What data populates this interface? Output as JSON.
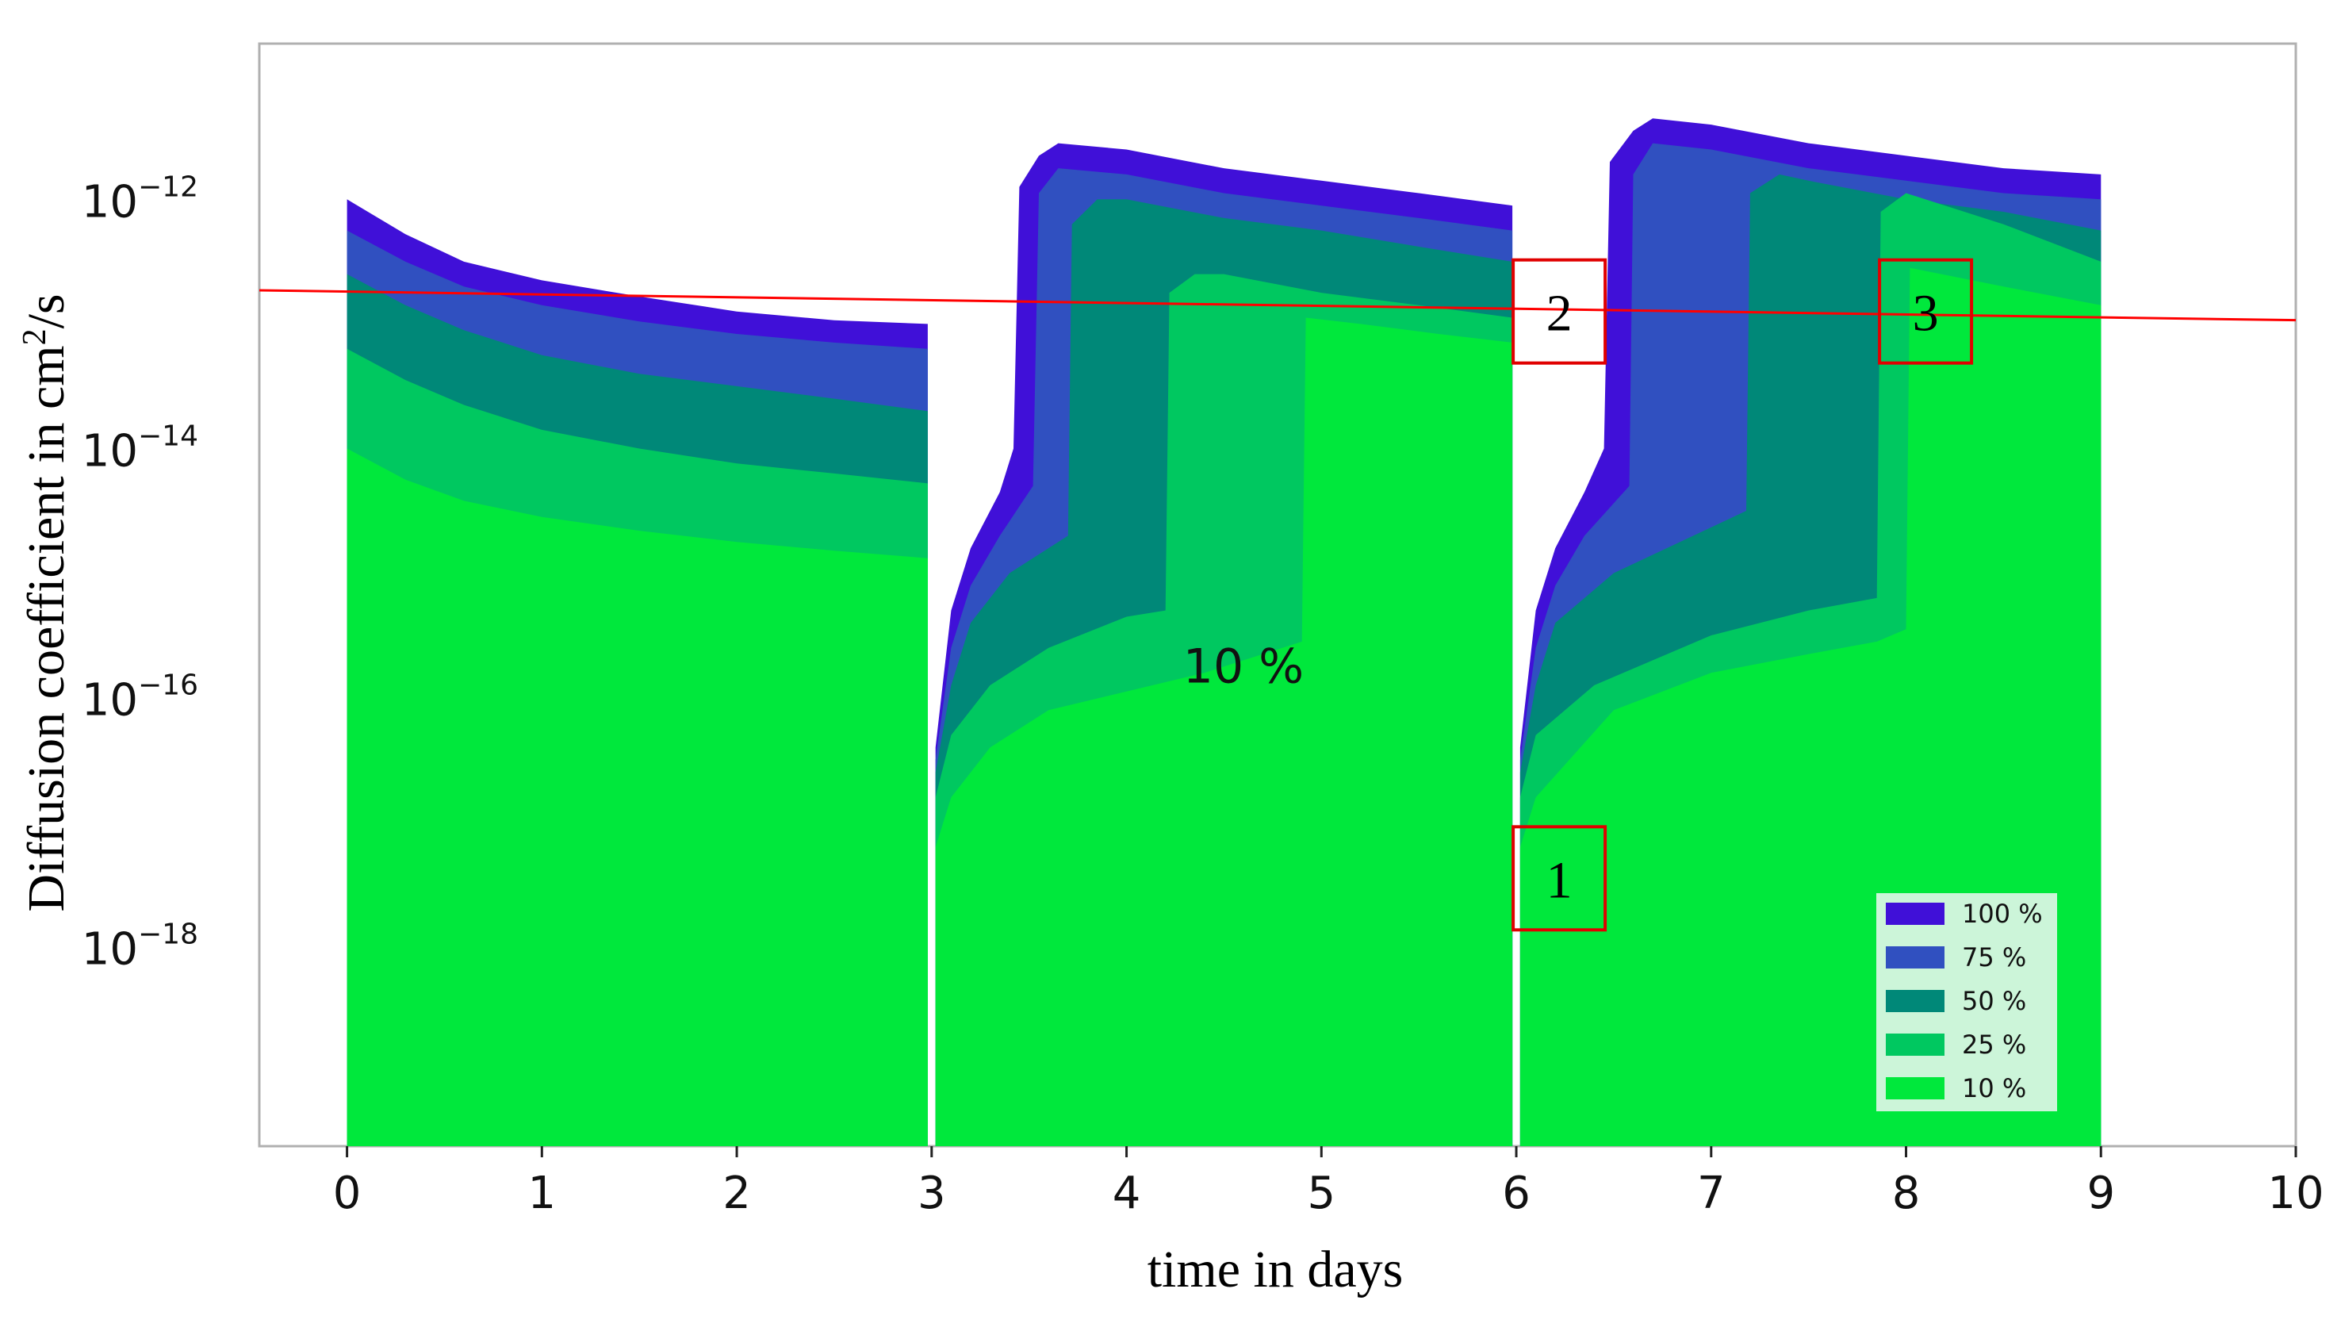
{
  "chart_data": {
    "type": "area",
    "title": "",
    "xlabel": "time in days",
    "ylabel": "Diffusion coefficient in cm²/s",
    "ylabel_text": "Diffusion coefficient in cm",
    "ylabel_unit_sup": "2",
    "ylabel_unit_tail": "/s",
    "xlim": [
      -0.45,
      10
    ],
    "ylim_log10": [
      -19.6,
      -10.75
    ],
    "y_scale": "log",
    "x_ticks": [
      0,
      1,
      2,
      3,
      4,
      5,
      6,
      7,
      8,
      9,
      10
    ],
    "y_ticks": [
      {
        "base": "10",
        "exp": "−12",
        "log10": -12
      },
      {
        "base": "10",
        "exp": "−14",
        "log10": -14
      },
      {
        "base": "10",
        "exp": "−16",
        "log10": -16
      },
      {
        "base": "10",
        "exp": "−18",
        "log10": -18
      }
    ],
    "legend": {
      "position": "lower-right",
      "entries": [
        {
          "label": "100 %",
          "color": "#4010d8"
        },
        {
          "label": "75 %",
          "color": "#3050c0"
        },
        {
          "label": "50 %",
          "color": "#008878"
        },
        {
          "label": "25 %",
          "color": "#00c860"
        },
        {
          "label": "10 %",
          "color": "#00e83c"
        }
      ]
    },
    "series": [
      {
        "name": "100 %",
        "color": "#4010d8",
        "points": [
          [
            0,
            -12.0
          ],
          [
            0.3,
            -12.28
          ],
          [
            0.6,
            -12.5
          ],
          [
            1.0,
            -12.65
          ],
          [
            1.5,
            -12.78
          ],
          [
            2.0,
            -12.9
          ],
          [
            2.5,
            -12.97
          ],
          [
            2.98,
            -13.0
          ],
          [
            3.02,
            -16.4
          ],
          [
            3.1,
            -15.3
          ],
          [
            3.2,
            -14.8
          ],
          [
            3.35,
            -14.35
          ],
          [
            3.42,
            -14.0
          ],
          [
            3.45,
            -11.9
          ],
          [
            3.55,
            -11.65
          ],
          [
            3.65,
            -11.55
          ],
          [
            4.0,
            -11.6
          ],
          [
            4.5,
            -11.75
          ],
          [
            5.0,
            -11.85
          ],
          [
            5.5,
            -11.95
          ],
          [
            5.98,
            -12.05
          ],
          [
            6.02,
            -16.4
          ],
          [
            6.1,
            -15.3
          ],
          [
            6.2,
            -14.8
          ],
          [
            6.35,
            -14.35
          ],
          [
            6.45,
            -14.0
          ],
          [
            6.48,
            -11.7
          ],
          [
            6.6,
            -11.45
          ],
          [
            6.7,
            -11.35
          ],
          [
            7.0,
            -11.4
          ],
          [
            7.5,
            -11.55
          ],
          [
            8.0,
            -11.65
          ],
          [
            8.5,
            -11.75
          ],
          [
            9.0,
            -11.8
          ]
        ]
      },
      {
        "name": "75 %",
        "color": "#3050c0",
        "points": [
          [
            0,
            -12.25
          ],
          [
            0.3,
            -12.5
          ],
          [
            0.6,
            -12.7
          ],
          [
            1.0,
            -12.85
          ],
          [
            1.5,
            -12.98
          ],
          [
            2.0,
            -13.08
          ],
          [
            2.5,
            -13.15
          ],
          [
            2.98,
            -13.2
          ],
          [
            3.02,
            -16.5
          ],
          [
            3.1,
            -15.6
          ],
          [
            3.2,
            -15.1
          ],
          [
            3.35,
            -14.7
          ],
          [
            3.52,
            -14.3
          ],
          [
            3.55,
            -11.95
          ],
          [
            3.65,
            -11.75
          ],
          [
            4.0,
            -11.8
          ],
          [
            4.5,
            -11.95
          ],
          [
            5.0,
            -12.05
          ],
          [
            5.5,
            -12.15
          ],
          [
            5.98,
            -12.25
          ],
          [
            6.02,
            -16.5
          ],
          [
            6.1,
            -15.6
          ],
          [
            6.2,
            -15.1
          ],
          [
            6.35,
            -14.7
          ],
          [
            6.58,
            -14.3
          ],
          [
            6.6,
            -11.8
          ],
          [
            6.7,
            -11.55
          ],
          [
            7.0,
            -11.6
          ],
          [
            7.5,
            -11.75
          ],
          [
            8.0,
            -11.85
          ],
          [
            8.5,
            -11.95
          ],
          [
            9.0,
            -12.0
          ]
        ]
      },
      {
        "name": "50 %",
        "color": "#008878",
        "points": [
          [
            0,
            -12.6
          ],
          [
            0.3,
            -12.85
          ],
          [
            0.6,
            -13.05
          ],
          [
            1.0,
            -13.25
          ],
          [
            1.5,
            -13.4
          ],
          [
            2.0,
            -13.5
          ],
          [
            2.5,
            -13.6
          ],
          [
            2.98,
            -13.7
          ],
          [
            3.02,
            -16.6
          ],
          [
            3.1,
            -15.9
          ],
          [
            3.2,
            -15.4
          ],
          [
            3.4,
            -15.0
          ],
          [
            3.7,
            -14.7
          ],
          [
            3.72,
            -12.2
          ],
          [
            3.85,
            -12.0
          ],
          [
            4.0,
            -12.0
          ],
          [
            4.5,
            -12.15
          ],
          [
            5.0,
            -12.25
          ],
          [
            5.5,
            -12.38
          ],
          [
            5.98,
            -12.5
          ],
          [
            6.02,
            -16.6
          ],
          [
            6.1,
            -15.9
          ],
          [
            6.2,
            -15.4
          ],
          [
            6.5,
            -15.0
          ],
          [
            7.18,
            -14.5
          ],
          [
            7.2,
            -11.95
          ],
          [
            7.35,
            -11.8
          ],
          [
            7.5,
            -11.85
          ],
          [
            8.0,
            -12.0
          ],
          [
            8.5,
            -12.1
          ],
          [
            9.0,
            -12.25
          ]
        ]
      },
      {
        "name": "25 %",
        "color": "#00c860",
        "points": [
          [
            0,
            -13.2
          ],
          [
            0.3,
            -13.45
          ],
          [
            0.6,
            -13.65
          ],
          [
            1.0,
            -13.85
          ],
          [
            1.5,
            -14.0
          ],
          [
            2.0,
            -14.12
          ],
          [
            2.5,
            -14.2
          ],
          [
            2.98,
            -14.28
          ],
          [
            3.02,
            -16.8
          ],
          [
            3.1,
            -16.3
          ],
          [
            3.3,
            -15.9
          ],
          [
            3.6,
            -15.6
          ],
          [
            4.0,
            -15.35
          ],
          [
            4.2,
            -15.3
          ],
          [
            4.22,
            -12.75
          ],
          [
            4.35,
            -12.6
          ],
          [
            4.5,
            -12.6
          ],
          [
            5.0,
            -12.75
          ],
          [
            5.5,
            -12.85
          ],
          [
            5.98,
            -12.95
          ],
          [
            6.02,
            -16.8
          ],
          [
            6.1,
            -16.3
          ],
          [
            6.4,
            -15.9
          ],
          [
            7.0,
            -15.5
          ],
          [
            7.5,
            -15.3
          ],
          [
            7.85,
            -15.2
          ],
          [
            7.87,
            -12.1
          ],
          [
            8.0,
            -11.95
          ],
          [
            8.5,
            -12.2
          ],
          [
            9.0,
            -12.5
          ]
        ]
      },
      {
        "name": "10 %",
        "color": "#00e83c",
        "points": [
          [
            0,
            -14.0
          ],
          [
            0.3,
            -14.25
          ],
          [
            0.6,
            -14.42
          ],
          [
            1.0,
            -14.55
          ],
          [
            1.5,
            -14.66
          ],
          [
            2.0,
            -14.75
          ],
          [
            2.5,
            -14.82
          ],
          [
            2.98,
            -14.88
          ],
          [
            3.02,
            -17.2
          ],
          [
            3.1,
            -16.8
          ],
          [
            3.3,
            -16.4
          ],
          [
            3.6,
            -16.1
          ],
          [
            4.0,
            -15.95
          ],
          [
            4.4,
            -15.8
          ],
          [
            4.8,
            -15.6
          ],
          [
            4.9,
            -15.55
          ],
          [
            4.92,
            -12.95
          ],
          [
            5.2,
            -13.0
          ],
          [
            5.6,
            -13.08
          ],
          [
            5.98,
            -13.15
          ],
          [
            6.02,
            -17.2
          ],
          [
            6.1,
            -16.8
          ],
          [
            6.5,
            -16.1
          ],
          [
            7.0,
            -15.8
          ],
          [
            7.5,
            -15.65
          ],
          [
            7.85,
            -15.55
          ],
          [
            8.0,
            -15.45
          ],
          [
            8.02,
            -12.55
          ],
          [
            8.5,
            -12.7
          ],
          [
            9.0,
            -12.85
          ]
        ]
      }
    ],
    "annotations": {
      "reference_line": {
        "color": "#ff0000",
        "start": [
          -0.45,
          -12.73
        ],
        "end": [
          10.0,
          -12.97
        ]
      },
      "boxes": [
        {
          "label": "1",
          "x_center": 6.22,
          "log10_center": -17.45,
          "color": "#e00000"
        },
        {
          "label": "2",
          "x_center": 6.22,
          "log10_center": -12.9,
          "color": "#e00000"
        },
        {
          "label": "3",
          "x_center": 8.1,
          "log10_center": -12.9,
          "color": "#e00000"
        }
      ],
      "inside_label": {
        "text": "10 %",
        "x": 4.6,
        "log10": -15.75
      }
    }
  }
}
